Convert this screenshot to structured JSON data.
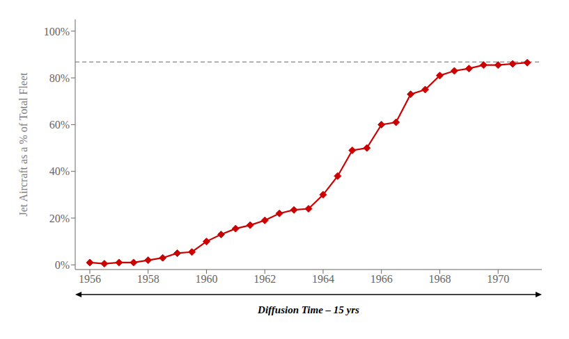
{
  "chart_data": {
    "type": "line",
    "x": [
      1956,
      1956.5,
      1957,
      1957.5,
      1958,
      1958.5,
      1959,
      1959.5,
      1960,
      1960.5,
      1961,
      1961.5,
      1962,
      1962.5,
      1963,
      1963.5,
      1964,
      1964.5,
      1965,
      1965.5,
      1966,
      1966.5,
      1967,
      1967.5,
      1968,
      1968.5,
      1969,
      1969.5,
      1970,
      1970.5,
      1971
    ],
    "values": [
      0.01,
      0.005,
      0.01,
      0.01,
      0.02,
      0.03,
      0.05,
      0.055,
      0.1,
      0.13,
      0.155,
      0.17,
      0.19,
      0.22,
      0.235,
      0.24,
      0.3,
      0.38,
      0.49,
      0.5,
      0.6,
      0.61,
      0.73,
      0.75,
      0.81,
      0.83,
      0.84,
      0.855,
      0.855,
      0.86,
      0.865
    ],
    "color": "#CC0000",
    "marker": "diamond",
    "line_style": "solid",
    "reference_lines": [
      {
        "y": 0.868,
        "color": "#999999",
        "line_style": "dashed"
      }
    ],
    "xlabel": "Diffusion Time – 15 yrs",
    "ylabel": "Jet Aircraft as a % of Total Fleet",
    "xlim": [
      1955.5,
      1971.5
    ],
    "xticks": [
      1956,
      1958,
      1960,
      1962,
      1964,
      1966,
      1968,
      1970
    ],
    "ylim": [
      -0.02,
      1.05
    ],
    "yticks": [
      {
        "value": 0.0,
        "label": "0%"
      },
      {
        "value": 0.2,
        "label": "20%"
      },
      {
        "value": 0.4,
        "label": "40%"
      },
      {
        "value": 0.6,
        "label": "60%"
      },
      {
        "value": 0.8,
        "label": "80%"
      },
      {
        "value": 1.0,
        "label": "100%"
      }
    ],
    "grid": false
  }
}
